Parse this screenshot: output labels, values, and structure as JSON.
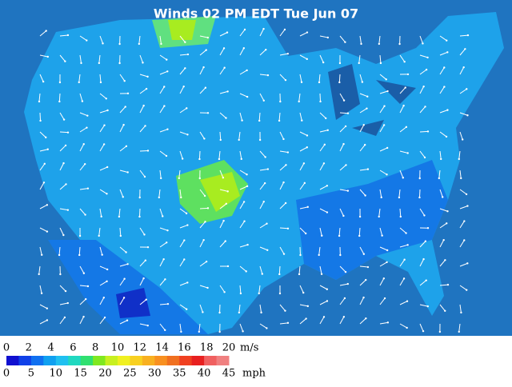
{
  "title": "Winds 02 PM EDT Tue Jun 07",
  "legend": {
    "colors": [
      "#1010d0",
      "#1040e8",
      "#1070f0",
      "#10a0f0",
      "#20c0f0",
      "#20d8c0",
      "#30e070",
      "#80e820",
      "#c8f020",
      "#f0f020",
      "#f8d020",
      "#f8b020",
      "#f89020",
      "#f07020",
      "#f04020",
      "#e82020",
      "#f06060",
      "#f08080"
    ],
    "ms_ticks": [
      0,
      2,
      4,
      6,
      8,
      10,
      12,
      14,
      16,
      18,
      20
    ],
    "ms_unit": "m/s",
    "mph_ticks": [
      0,
      5,
      10,
      15,
      20,
      25,
      30,
      35,
      40,
      45
    ],
    "mph_unit": "mph"
  }
}
